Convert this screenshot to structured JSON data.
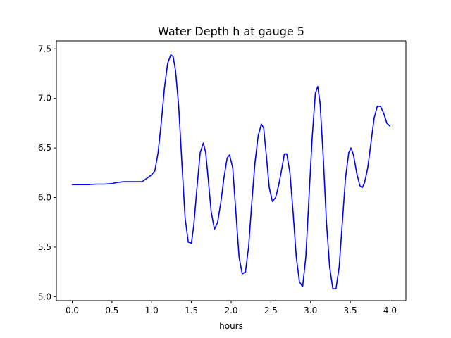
{
  "chart_data": {
    "type": "line",
    "title": "Water Depth h at gauge 5",
    "xlabel": "hours",
    "ylabel": "",
    "xlim": [
      -0.2,
      4.2
    ],
    "ylim": [
      4.96,
      7.58
    ],
    "xticks": [
      0.0,
      0.5,
      1.0,
      1.5,
      2.0,
      2.5,
      3.0,
      3.5,
      4.0
    ],
    "xtick_labels": [
      "0.0",
      "0.5",
      "1.0",
      "1.5",
      "2.0",
      "2.5",
      "3.0",
      "3.5",
      "4.0"
    ],
    "yticks": [
      5.0,
      5.5,
      6.0,
      6.5,
      7.0,
      7.5
    ],
    "ytick_labels": [
      "5.0",
      "5.5",
      "6.0",
      "6.5",
      "7.0",
      "7.5"
    ],
    "grid": false,
    "legend": "none",
    "series": [
      {
        "color": "#0000ff",
        "x": [
          0.0,
          0.1,
          0.2,
          0.3,
          0.4,
          0.5,
          0.55,
          0.6,
          0.65,
          0.7,
          0.8,
          0.88,
          0.95,
          1.0,
          1.04,
          1.08,
          1.12,
          1.16,
          1.2,
          1.24,
          1.27,
          1.3,
          1.34,
          1.38,
          1.42,
          1.46,
          1.5,
          1.53,
          1.57,
          1.61,
          1.65,
          1.68,
          1.71,
          1.75,
          1.79,
          1.83,
          1.87,
          1.91,
          1.95,
          1.98,
          2.02,
          2.06,
          2.1,
          2.14,
          2.18,
          2.22,
          2.26,
          2.3,
          2.34,
          2.38,
          2.41,
          2.44,
          2.48,
          2.52,
          2.56,
          2.6,
          2.64,
          2.67,
          2.7,
          2.74,
          2.78,
          2.82,
          2.86,
          2.9,
          2.94,
          2.98,
          3.02,
          3.06,
          3.09,
          3.12,
          3.16,
          3.2,
          3.24,
          3.28,
          3.32,
          3.36,
          3.4,
          3.44,
          3.48,
          3.51,
          3.54,
          3.58,
          3.62,
          3.65,
          3.68,
          3.72,
          3.76,
          3.8,
          3.84,
          3.88,
          3.92,
          3.96,
          4.0
        ],
        "y": [
          6.13,
          6.13,
          6.13,
          6.135,
          6.135,
          6.14,
          6.15,
          6.155,
          6.16,
          6.16,
          6.16,
          6.16,
          6.2,
          6.23,
          6.27,
          6.45,
          6.75,
          7.1,
          7.35,
          7.44,
          7.42,
          7.28,
          6.92,
          6.35,
          5.8,
          5.55,
          5.54,
          5.72,
          6.1,
          6.45,
          6.55,
          6.45,
          6.2,
          5.85,
          5.68,
          5.75,
          5.95,
          6.2,
          6.4,
          6.43,
          6.3,
          5.85,
          5.4,
          5.23,
          5.25,
          5.5,
          5.95,
          6.35,
          6.62,
          6.74,
          6.7,
          6.45,
          6.1,
          5.96,
          6.0,
          6.13,
          6.3,
          6.44,
          6.44,
          6.25,
          5.85,
          5.4,
          5.15,
          5.1,
          5.4,
          6.0,
          6.6,
          7.05,
          7.12,
          6.95,
          6.4,
          5.75,
          5.3,
          5.08,
          5.08,
          5.3,
          5.75,
          6.2,
          6.45,
          6.5,
          6.43,
          6.25,
          6.12,
          6.1,
          6.15,
          6.3,
          6.55,
          6.8,
          6.92,
          6.92,
          6.85,
          6.75,
          6.72
        ]
      }
    ]
  }
}
